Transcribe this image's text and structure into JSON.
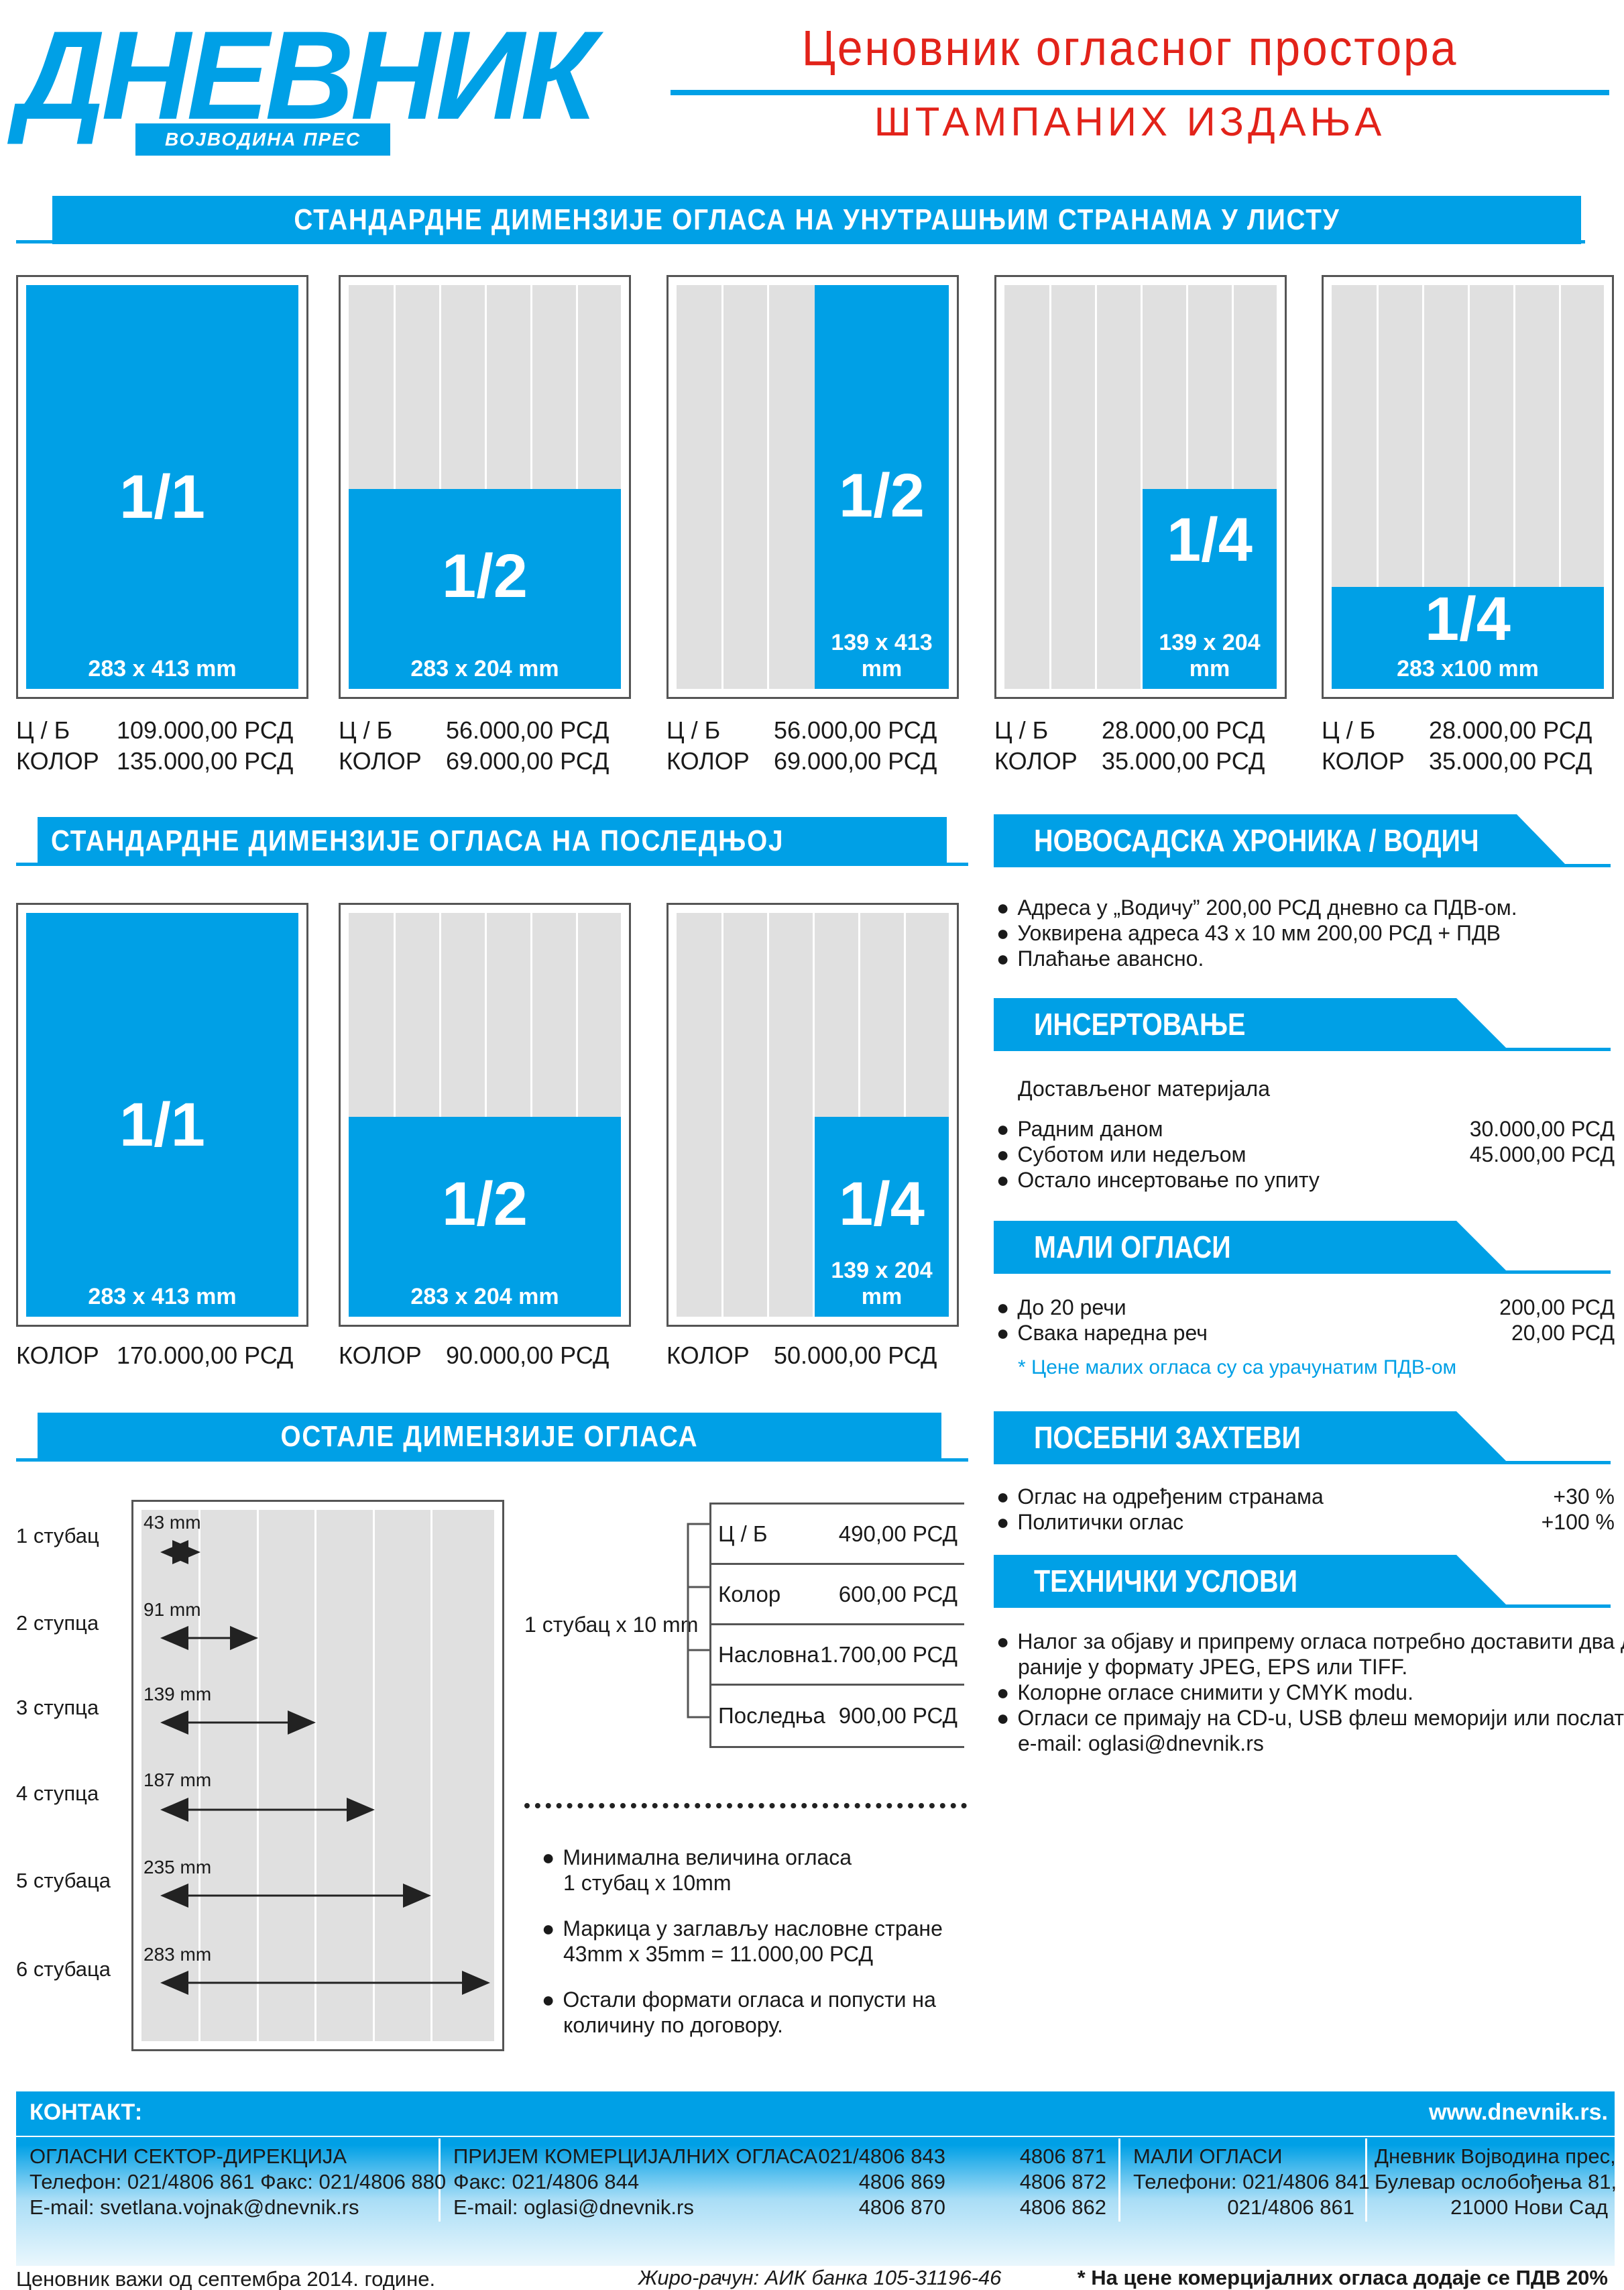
{
  "header": {
    "logo": "ДНЕВНИК",
    "logo_sub": "ВОЈВОДИНА ПРЕС",
    "title": "Ценовник огласног простора",
    "subtitle": "ШТАМПАНИХ ИЗДАЊА"
  },
  "inner_pages": {
    "heading": "СТАНДАРДНЕ ДИМЕНЗИЈЕ ОГЛАСА НА УНУТРАШЊИМ СТРАНАМА У ЛИСТУ",
    "ads": [
      {
        "fraction": "1/1",
        "size": "283 x 413 mm",
        "bw_label": "Ц / Б",
        "bw_price": "109.000,00 РСД",
        "color_label": "КОЛОР",
        "color_price": "135.000,00 РСД"
      },
      {
        "fraction": "1/2",
        "size": "283 x 204 mm",
        "bw_label": "Ц / Б",
        "bw_price": "56.000,00 РСД",
        "color_label": "КОЛОР",
        "color_price": "69.000,00 РСД"
      },
      {
        "fraction": "1/2",
        "size": "139 x 413 mm",
        "bw_label": "Ц / Б",
        "bw_price": "56.000,00 РСД",
        "color_label": "КОЛОР",
        "color_price": "69.000,00 РСД"
      },
      {
        "fraction": "1/4",
        "size": "139 x 204 mm",
        "bw_label": "Ц / Б",
        "bw_price": "28.000,00 РСД",
        "color_label": "КОЛОР",
        "color_price": "35.000,00 РСД"
      },
      {
        "fraction": "1/4",
        "size": "283 x100 mm",
        "bw_label": "Ц / Б",
        "bw_price": "28.000,00 РСД",
        "color_label": "КОЛОР",
        "color_price": "35.000,00 РСД"
      }
    ]
  },
  "last_page": {
    "heading": "СТАНДАРДНЕ ДИМЕНЗИЈЕ ОГЛАСА НА ПОСЛЕДЊОЈ СТРАНИ",
    "ads": [
      {
        "fraction": "1/1",
        "size": "283 x 413 mm",
        "color_label": "КОЛОР",
        "color_price": "170.000,00 РСД"
      },
      {
        "fraction": "1/2",
        "size": "283 x 204 mm",
        "color_label": "КОЛОР",
        "color_price": "90.000,00 РСД"
      },
      {
        "fraction": "1/4",
        "size": "139 x 204 mm",
        "color_label": "КОЛОР",
        "color_price": "50.000,00 РСД"
      }
    ]
  },
  "other": {
    "heading": "ОСТАЛЕ ДИМЕНЗИЈЕ ОГЛАСА",
    "columns": [
      {
        "label": "1 стубац",
        "mm": "43 mm"
      },
      {
        "label": "2 ступца",
        "mm": "91 mm"
      },
      {
        "label": "3 ступца",
        "mm": "139 mm"
      },
      {
        "label": "4 ступца",
        "mm": "187 mm"
      },
      {
        "label": "5 стубаца",
        "mm": "235 mm"
      },
      {
        "label": "6 стубаца",
        "mm": "283 mm"
      }
    ],
    "unit_label": "1 стубац x 10 mm",
    "table": [
      {
        "name": "Ц / Б",
        "price": "490,00 РСД"
      },
      {
        "name": "Колор",
        "price": "600,00 РСД"
      },
      {
        "name": "Насловна",
        "price": "1.700,00 РСД"
      },
      {
        "name": "Последња",
        "price": "900,00 РСД"
      }
    ],
    "notes": [
      {
        "line1": "Минимална величина огласа",
        "line2": "1 стубац x 10mm"
      },
      {
        "line1": "Маркица у заглављу насловне стране",
        "line2": "43mm x 35mm = 11.000,00 РСД"
      },
      {
        "line1": "Остали формати огласа и попусти на",
        "line2": "количину по договору."
      }
    ]
  },
  "novosadska": {
    "heading": "НОВОСАДСКА ХРОНИКА / ВОДИЧ",
    "items": [
      "Адреса у „Водичу” 200,00 РСД дневно са ПДВ-ом.",
      "Уоквирена адреса 43 x 10 мм 200,00 РСД + ПДВ",
      "Плаћање авансно."
    ]
  },
  "insertovanje": {
    "heading": "ИНСЕРТОВАЊЕ",
    "intro": "Достављеног материјала",
    "items": [
      {
        "label": "Радним даном",
        "value": "30.000,00 РСД"
      },
      {
        "label": "Суботом или недељом",
        "value": "45.000,00 РСД"
      },
      {
        "label": "Остало инсертовање по упиту",
        "value": ""
      }
    ]
  },
  "mali": {
    "heading": "МАЛИ ОГЛАСИ",
    "items": [
      {
        "label": "До 20 речи",
        "value": "200,00 РСД"
      },
      {
        "label": "Свака наредна реч",
        "value": "20,00 РСД"
      }
    ],
    "note": "* Цене малих огласа су са урачунатим ПДВ-ом"
  },
  "posebni": {
    "heading": "ПОСЕБНИ ЗАХТЕВИ",
    "items": [
      {
        "label": "Оглас на одређеним странама",
        "value": "+30 %"
      },
      {
        "label": "Политички оглас",
        "value": "+100 %"
      }
    ]
  },
  "tehnicki": {
    "heading": "ТЕХНИЧКИ УСЛОВИ",
    "items": [
      {
        "line1": "Налог за објаву и припрему огласа потребно доставити два дана",
        "line2": "раније у формату JPEG, EPS или TIFF."
      },
      {
        "line1": "Колорне огласе снимити у CMYK modu.",
        "line2": ""
      },
      {
        "line1": "Огласи се примају на CD-u, USB флеш меморији или послати на",
        "line2": "e-mail: oglasi@dnevnik.rs"
      }
    ]
  },
  "contact": {
    "heading": "КОНТАКТ:",
    "website": "www.dnevnik.rs.",
    "col1": [
      "ОГЛАСНИ СЕКТОР-ДИРЕКЦИЈА",
      "Телефон: 021/4806 861 Факс: 021/4806 880",
      "E-mail: svetlana.vojnak@dnevnik.rs"
    ],
    "col2": [
      "ПРИЈЕМ КОМЕРЦИЈАЛНИХ ОГЛАСА",
      "Факс: 021/4806 844",
      "E-mail: oglasi@dnevnik.rs"
    ],
    "col3": [
      "021/4806 843",
      "4806 869",
      "4806 870"
    ],
    "col4": [
      "4806 871",
      "4806 872",
      "4806 862"
    ],
    "col5": [
      "МАЛИ ОГЛАСИ",
      "Телефони: 021/4806 841",
      "021/4806 861"
    ],
    "col6": [
      "Дневник Војводина прес,",
      "Булевар ослобођења 81,",
      "21000 Нови Сад"
    ]
  },
  "footer": {
    "valid": "Ценовник важи од септембра 2014. године.",
    "account": "Жиро-рачун: АИК банка 105-31196-46",
    "vat": "* На цене комерцијалних огласа додаје се ПДВ 20%"
  },
  "colors": {
    "accent": "#00a0e6",
    "title_red": "#e2231a",
    "page_grey": "#e0e0e0"
  }
}
